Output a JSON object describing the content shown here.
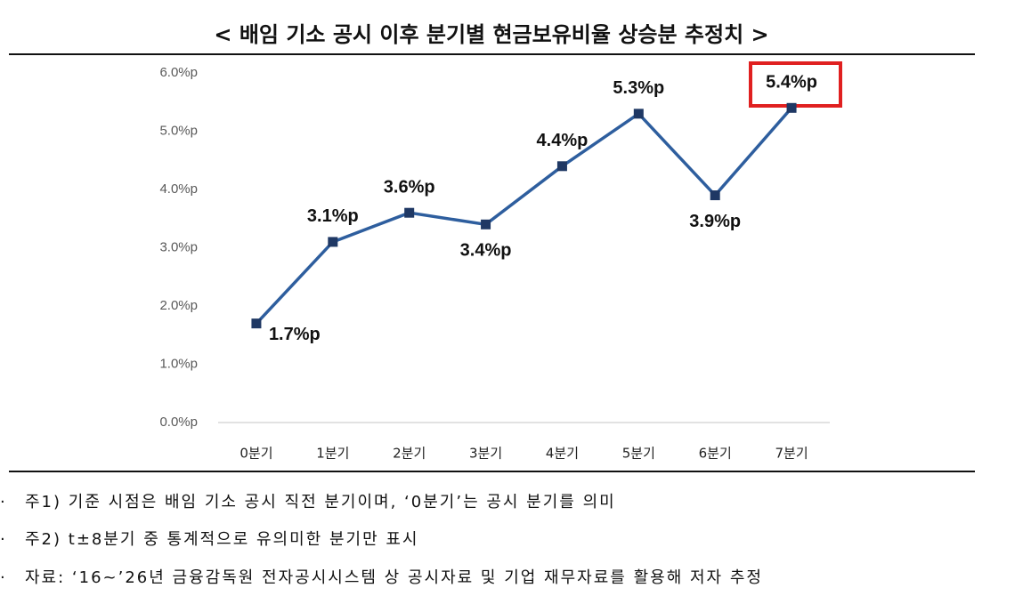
{
  "chart_data": {
    "type": "line",
    "title": "< 배임 기소 공시 이후 분기별 현금보유비율 상승분 추정치 >",
    "categories": [
      "0분기",
      "1분기",
      "2분기",
      "3분기",
      "4분기",
      "5분기",
      "6분기",
      "7분기"
    ],
    "series": [
      {
        "name": "현금보유비율 상승분",
        "color": "#2e5e9e",
        "values": [
          1.7,
          3.1,
          3.6,
          3.4,
          4.4,
          5.3,
          3.9,
          5.4
        ],
        "value_labels": [
          "1.7%p",
          "3.1%p",
          "3.6%p",
          "3.4%p",
          "4.4%p",
          "5.3%p",
          "3.9%p",
          "5.4%p"
        ]
      }
    ],
    "ylim": [
      0,
      6
    ],
    "yticks": [
      {
        "value": 0,
        "label": "0.0%p"
      },
      {
        "value": 1,
        "label": "1.0%p"
      },
      {
        "value": 2,
        "label": "2.0%p"
      },
      {
        "value": 3,
        "label": "3.0%p"
      },
      {
        "value": 4,
        "label": "4.0%p"
      },
      {
        "value": 5,
        "label": "5.0%p"
      },
      {
        "value": 6,
        "label": "6.0%p"
      }
    ],
    "grid": false
  },
  "notes": [
    "주1) 기준 시점은 배임 기소 공시 직전 분기이며, ‘0분기’는 공시 분기를 의미",
    "주2) t±8분기 중 통계적으로 유의미한 분기만 표시",
    "자료: ‘16~’26년 금융감독원 전자공시시스템 상 공시자료 및 기업 재무자료를 활용해 저자 추정"
  ]
}
